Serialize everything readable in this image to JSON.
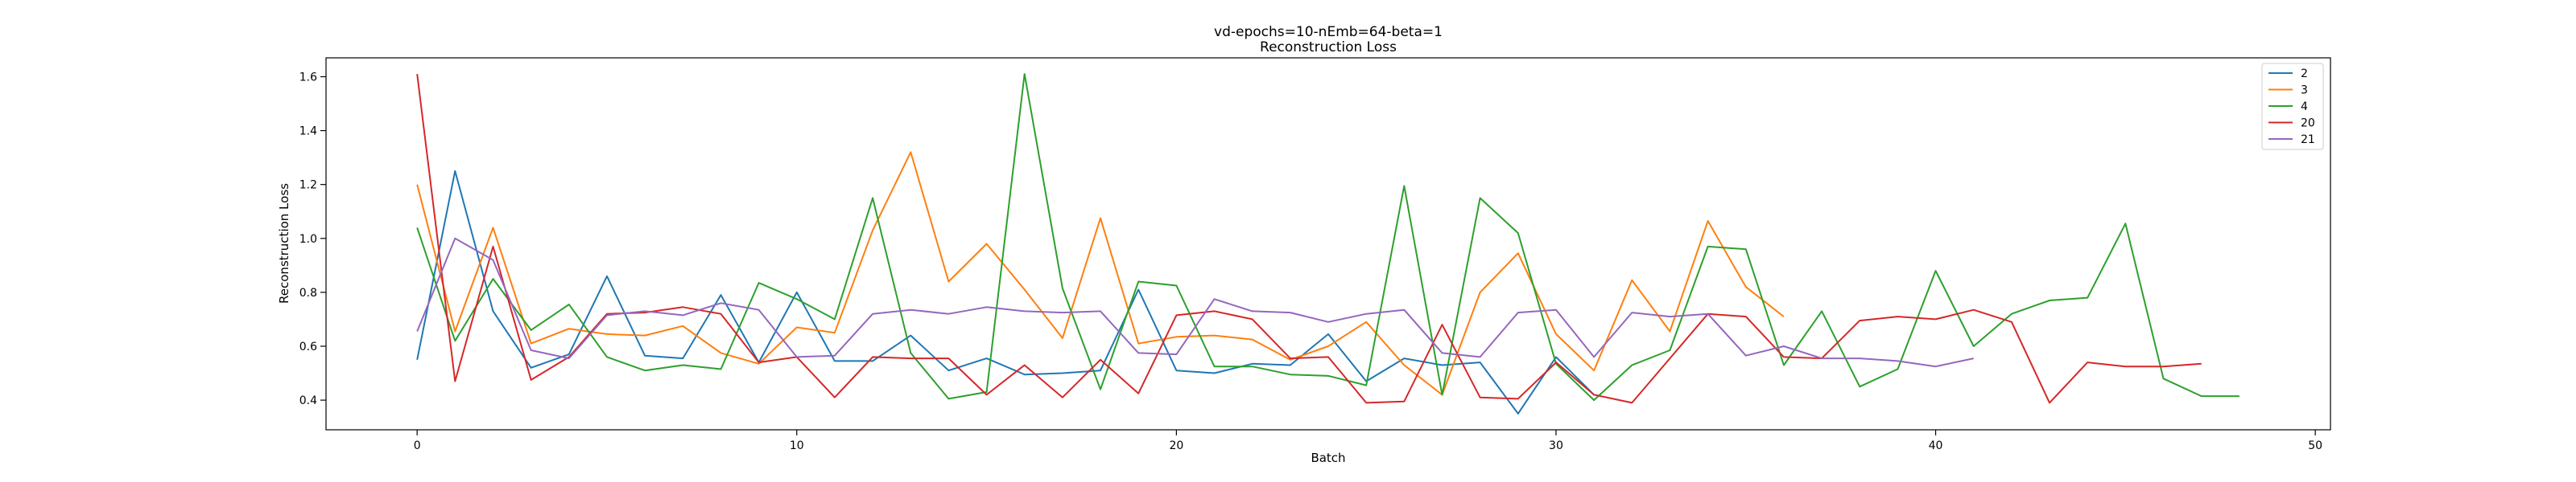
{
  "chart_data": {
    "type": "line",
    "title": "vd-epochs=10-nEmb=64-beta=1",
    "subtitle": "Reconstruction Loss",
    "xlabel": "Batch",
    "ylabel": "Reconstruction Loss",
    "xlim": [
      -2.4,
      50.4
    ],
    "ylim": [
      0.29,
      1.67
    ],
    "xticks": [
      0,
      10,
      20,
      30,
      40,
      50
    ],
    "yticks": [
      0.4,
      0.6,
      0.8,
      1.0,
      1.2,
      1.4,
      1.6
    ],
    "ytick_labels": [
      "0.4",
      "0.6",
      "0.8",
      "1.0",
      "1.2",
      "1.4",
      "1.6"
    ],
    "grid": false,
    "legend_position": "top-right",
    "series": [
      {
        "name": "2",
        "color": "#1f77b4",
        "values": [
          0.55,
          1.25,
          0.73,
          0.52,
          0.57,
          0.86,
          0.565,
          0.555,
          0.79,
          0.54,
          0.8,
          0.545,
          0.545,
          0.64,
          0.51,
          0.555,
          0.495,
          0.5,
          0.51,
          0.81,
          0.51,
          0.5,
          0.535,
          0.53,
          0.645,
          0.47,
          0.555,
          0.53,
          0.54,
          0.35,
          0.56,
          0.42
        ]
      },
      {
        "name": "3",
        "color": "#ff7f0e",
        "values": [
          1.2,
          0.655,
          1.04,
          0.61,
          0.665,
          0.645,
          0.64,
          0.675,
          0.575,
          0.535,
          0.67,
          0.65,
          1.03,
          1.32,
          0.84,
          0.98,
          0.81,
          0.63,
          1.075,
          0.61,
          0.635,
          0.64,
          0.625,
          0.55,
          0.6,
          0.69,
          0.53,
          0.42,
          0.8,
          0.945,
          0.645,
          0.51,
          0.845,
          0.655,
          1.065,
          0.82,
          0.71
        ]
      },
      {
        "name": "4",
        "color": "#2ca02c",
        "values": [
          1.04,
          0.62,
          0.85,
          0.66,
          0.755,
          0.56,
          0.51,
          0.53,
          0.515,
          0.835,
          0.775,
          0.7,
          1.15,
          0.575,
          0.405,
          0.43,
          1.61,
          0.815,
          0.44,
          0.84,
          0.825,
          0.525,
          0.525,
          0.495,
          0.49,
          0.455,
          1.195,
          0.42,
          1.15,
          1.02,
          0.535,
          0.4,
          0.53,
          0.585,
          0.97,
          0.96,
          0.53,
          0.73,
          0.45,
          0.515,
          0.88,
          0.6,
          0.72,
          0.77,
          0.78,
          1.055,
          0.48,
          0.415,
          0.415
        ]
      },
      {
        "name": "20",
        "color": "#d62728",
        "values": [
          1.61,
          0.47,
          0.97,
          0.475,
          0.56,
          0.72,
          0.725,
          0.745,
          0.72,
          0.54,
          0.56,
          0.41,
          0.56,
          0.555,
          0.555,
          0.42,
          0.53,
          0.41,
          0.55,
          0.425,
          0.715,
          0.73,
          0.7,
          0.555,
          0.56,
          0.39,
          0.395,
          0.68,
          0.41,
          0.405,
          0.54,
          0.42,
          0.39,
          0.555,
          0.72,
          0.71,
          0.56,
          0.555,
          0.695,
          0.71,
          0.7,
          0.735,
          0.69,
          0.39,
          0.54,
          0.525,
          0.525,
          0.535
        ]
      },
      {
        "name": "21",
        "color": "#9467bd",
        "values": [
          0.655,
          1.0,
          0.92,
          0.585,
          0.555,
          0.715,
          0.73,
          0.715,
          0.76,
          0.735,
          0.56,
          0.565,
          0.72,
          0.735,
          0.72,
          0.745,
          0.73,
          0.725,
          0.73,
          0.575,
          0.57,
          0.775,
          0.73,
          0.725,
          0.69,
          0.72,
          0.735,
          0.575,
          0.56,
          0.725,
          0.735,
          0.56,
          0.725,
          0.71,
          0.72,
          0.565,
          0.6,
          0.555,
          0.555,
          0.545,
          0.525,
          0.555
        ]
      }
    ]
  }
}
